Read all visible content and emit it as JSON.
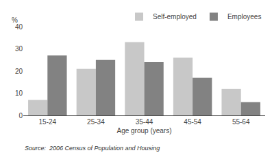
{
  "chart_data": {
    "type": "bar",
    "categories": [
      "15-24",
      "25-34",
      "35-44",
      "45-54",
      "55-64"
    ],
    "series": [
      {
        "name": "Self-employed",
        "color": "#c8c8c8",
        "values": [
          7,
          21,
          33,
          26,
          12
        ]
      },
      {
        "name": "Employees",
        "color": "#828282",
        "values": [
          27,
          25,
          24,
          17,
          6
        ]
      }
    ],
    "xlabel": "Age group (years)",
    "ylabel": "%",
    "ylim": [
      0,
      40
    ],
    "yticks": [
      0,
      10,
      20,
      30,
      40
    ],
    "grid": false,
    "legend": "upper right",
    "annotations": [
      "Source:  2006 Census of Population and Housing"
    ]
  }
}
